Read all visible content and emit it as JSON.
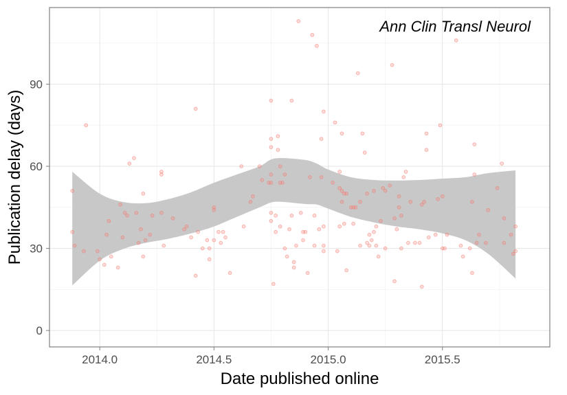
{
  "chart_data": {
    "type": "scatter",
    "title": "Ann Clin Transl Neurol",
    "xlabel": "Date published online",
    "ylabel": "Publication delay (days)",
    "xlim": [
      2013.78,
      2015.97
    ],
    "ylim": [
      -6,
      118
    ],
    "x_ticks": [
      2014.0,
      2014.5,
      2015.0,
      2015.5
    ],
    "x_tick_labels": [
      "2014.0",
      "2014.5",
      "2015.0",
      "2015.5"
    ],
    "y_ticks": [
      0,
      30,
      60,
      90
    ],
    "y_tick_labels": [
      "0",
      "30",
      "60",
      "90"
    ],
    "grid": true,
    "point_color": "#f8766d",
    "band_color": "#c8c8c8",
    "series": [
      {
        "points": [
          [
            2013.88,
            36
          ],
          [
            2013.88,
            51
          ],
          [
            2013.89,
            31
          ],
          [
            2013.93,
            29
          ],
          [
            2013.94,
            75
          ],
          [
            2013.99,
            29
          ],
          [
            2014.0,
            26
          ],
          [
            2014.02,
            24
          ],
          [
            2014.03,
            35
          ],
          [
            2014.04,
            40
          ],
          [
            2014.05,
            27
          ],
          [
            2014.08,
            23
          ],
          [
            2014.09,
            46
          ],
          [
            2014.1,
            34
          ],
          [
            2014.11,
            43
          ],
          [
            2014.12,
            42
          ],
          [
            2014.13,
            61
          ],
          [
            2014.15,
            63
          ],
          [
            2014.16,
            43
          ],
          [
            2014.17,
            32
          ],
          [
            2014.18,
            37
          ],
          [
            2014.19,
            27
          ],
          [
            2014.19,
            50
          ],
          [
            2014.2,
            33
          ],
          [
            2014.22,
            35
          ],
          [
            2014.23,
            42
          ],
          [
            2014.27,
            57
          ],
          [
            2014.27,
            58
          ],
          [
            2014.27,
            43
          ],
          [
            2014.28,
            31
          ],
          [
            2014.32,
            41
          ],
          [
            2014.37,
            37
          ],
          [
            2014.38,
            38
          ],
          [
            2014.4,
            34
          ],
          [
            2014.42,
            81
          ],
          [
            2014.42,
            20
          ],
          [
            2014.43,
            36
          ],
          [
            2014.45,
            30
          ],
          [
            2014.47,
            33
          ],
          [
            2014.48,
            26
          ],
          [
            2014.48,
            30
          ],
          [
            2014.5,
            33
          ],
          [
            2014.5,
            44
          ],
          [
            2014.5,
            45
          ],
          [
            2014.52,
            36
          ],
          [
            2014.53,
            32
          ],
          [
            2014.54,
            36
          ],
          [
            2014.55,
            34
          ],
          [
            2014.57,
            21
          ],
          [
            2014.62,
            60
          ],
          [
            2014.63,
            38
          ],
          [
            2014.66,
            47
          ],
          [
            2014.67,
            49
          ],
          [
            2014.7,
            60
          ],
          [
            2014.71,
            55
          ],
          [
            2014.74,
            54
          ],
          [
            2014.75,
            70
          ],
          [
            2014.75,
            84
          ],
          [
            2014.75,
            57
          ],
          [
            2014.75,
            67
          ],
          [
            2014.75,
            54
          ],
          [
            2014.75,
            43
          ],
          [
            2014.75,
            40
          ],
          [
            2014.76,
            17
          ],
          [
            2014.77,
            36
          ],
          [
            2014.77,
            42
          ],
          [
            2014.78,
            71
          ],
          [
            2014.78,
            66
          ],
          [
            2014.79,
            38
          ],
          [
            2014.79,
            54
          ],
          [
            2014.79,
            60
          ],
          [
            2014.8,
            54
          ],
          [
            2014.81,
            57
          ],
          [
            2014.81,
            30
          ],
          [
            2014.82,
            27
          ],
          [
            2014.83,
            37
          ],
          [
            2014.84,
            84
          ],
          [
            2014.84,
            42
          ],
          [
            2014.85,
            25
          ],
          [
            2014.85,
            23
          ],
          [
            2014.86,
            31
          ],
          [
            2014.87,
            113
          ],
          [
            2014.88,
            43
          ],
          [
            2014.89,
            36
          ],
          [
            2014.89,
            33
          ],
          [
            2014.9,
            36
          ],
          [
            2014.91,
            21
          ],
          [
            2014.92,
            56
          ],
          [
            2014.93,
            108
          ],
          [
            2014.94,
            42
          ],
          [
            2014.94,
            31
          ],
          [
            2014.95,
            104
          ],
          [
            2014.96,
            37
          ],
          [
            2014.97,
            56
          ],
          [
            2014.97,
            70
          ],
          [
            2014.98,
            80
          ],
          [
            2014.98,
            38
          ],
          [
            2014.98,
            31
          ],
          [
            2014.98,
            29
          ],
          [
            2015.02,
            54
          ],
          [
            2015.03,
            76
          ],
          [
            2015.04,
            29
          ],
          [
            2015.05,
            52
          ],
          [
            2015.05,
            58
          ],
          [
            2015.05,
            38
          ],
          [
            2015.06,
            72
          ],
          [
            2015.06,
            51
          ],
          [
            2015.06,
            47
          ],
          [
            2015.07,
            50
          ],
          [
            2015.07,
            39
          ],
          [
            2015.08,
            50
          ],
          [
            2015.08,
            22
          ],
          [
            2015.1,
            45
          ],
          [
            2015.11,
            39
          ],
          [
            2015.11,
            45
          ],
          [
            2015.12,
            45
          ],
          [
            2015.13,
            94
          ],
          [
            2015.14,
            31
          ],
          [
            2015.14,
            47
          ],
          [
            2015.15,
            72
          ],
          [
            2015.16,
            65
          ],
          [
            2015.17,
            50
          ],
          [
            2015.17,
            32
          ],
          [
            2015.18,
            31
          ],
          [
            2015.18,
            35
          ],
          [
            2015.19,
            33
          ],
          [
            2015.2,
            36
          ],
          [
            2015.2,
            51
          ],
          [
            2015.21,
            38
          ],
          [
            2015.21,
            31
          ],
          [
            2015.22,
            27
          ],
          [
            2015.23,
            40
          ],
          [
            2015.24,
            52
          ],
          [
            2015.25,
            30
          ],
          [
            2015.25,
            51
          ],
          [
            2015.27,
            53
          ],
          [
            2015.28,
            97
          ],
          [
            2015.29,
            41
          ],
          [
            2015.29,
            18
          ],
          [
            2015.3,
            37
          ],
          [
            2015.31,
            45
          ],
          [
            2015.31,
            49
          ],
          [
            2015.32,
            30
          ],
          [
            2015.32,
            42
          ],
          [
            2015.33,
            56
          ],
          [
            2015.34,
            58
          ],
          [
            2015.35,
            32
          ],
          [
            2015.36,
            47
          ],
          [
            2015.38,
            32
          ],
          [
            2015.4,
            32
          ],
          [
            2015.41,
            46
          ],
          [
            2015.41,
            16
          ],
          [
            2015.42,
            47
          ],
          [
            2015.43,
            66
          ],
          [
            2015.43,
            72
          ],
          [
            2015.44,
            34
          ],
          [
            2015.47,
            35
          ],
          [
            2015.48,
            48
          ],
          [
            2015.49,
            75
          ],
          [
            2015.5,
            49
          ],
          [
            2015.5,
            30
          ],
          [
            2015.51,
            30
          ],
          [
            2015.52,
            35
          ],
          [
            2015.56,
            106
          ],
          [
            2015.58,
            31
          ],
          [
            2015.59,
            27
          ],
          [
            2015.62,
            30
          ],
          [
            2015.63,
            21
          ],
          [
            2015.63,
            47
          ],
          [
            2015.64,
            68
          ],
          [
            2015.64,
            57
          ],
          [
            2015.65,
            32
          ],
          [
            2015.66,
            35
          ],
          [
            2015.69,
            32
          ],
          [
            2015.7,
            44
          ],
          [
            2015.74,
            52
          ],
          [
            2015.76,
            61
          ],
          [
            2015.77,
            41
          ],
          [
            2015.77,
            32
          ],
          [
            2015.8,
            35
          ],
          [
            2015.81,
            28
          ],
          [
            2015.82,
            29
          ],
          [
            2015.82,
            38
          ]
        ]
      }
    ],
    "smooth_band": {
      "x": [
        2013.88,
        2014.0,
        2014.1,
        2014.2,
        2014.3,
        2014.4,
        2014.5,
        2014.6,
        2014.7,
        2014.75,
        2014.8,
        2014.9,
        2014.95,
        2015.0,
        2015.1,
        2015.2,
        2015.3,
        2015.4,
        2015.5,
        2015.6,
        2015.7,
        2015.82
      ],
      "lower": [
        16.5,
        25.5,
        29.7,
        32.0,
        33.5,
        35.5,
        38.0,
        41.5,
        45.0,
        46.8,
        47.0,
        46.2,
        46.0,
        44.5,
        41.5,
        39.5,
        38.0,
        37.0,
        35.5,
        33.0,
        28.0,
        19.0
      ],
      "upper": [
        58.0,
        50.0,
        47.0,
        46.5,
        48.0,
        50.5,
        54.0,
        57.0,
        60.0,
        62.5,
        63.0,
        62.3,
        61.0,
        58.8,
        56.0,
        55.0,
        54.8,
        55.0,
        55.5,
        56.0,
        57.5,
        58.5
      ]
    }
  }
}
